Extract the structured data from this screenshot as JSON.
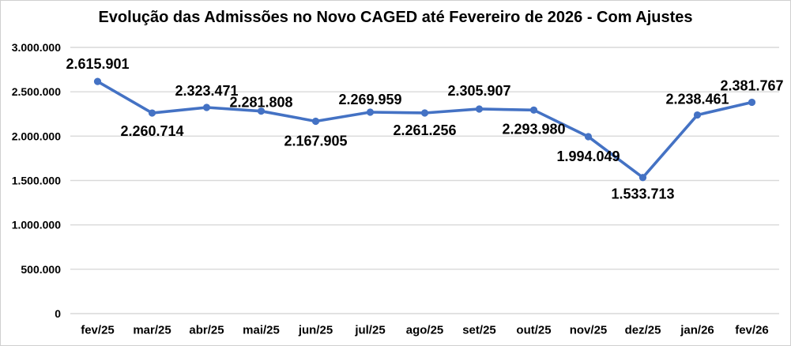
{
  "chart_data": {
    "type": "line",
    "title": "Evolução das Admissões no Novo CAGED até Fevereiro de 2026 - Com Ajustes",
    "categories": [
      "fev/25",
      "mar/25",
      "abr/25",
      "mai/25",
      "jun/25",
      "jul/25",
      "ago/25",
      "set/25",
      "out/25",
      "nov/25",
      "dez/25",
      "jan/26",
      "fev/26"
    ],
    "values": [
      2615901,
      2260714,
      2323471,
      2281808,
      2167905,
      2269959,
      2261256,
      2305907,
      2293980,
      1994049,
      1533713,
      2238461,
      2381767
    ],
    "data_labels": [
      "2.615.901",
      "2.260.714",
      "2.323.471",
      "2.281.808",
      "2.167.905",
      "2.269.959",
      "2.261.256",
      "2.305.907",
      "2.293.980",
      "1.994.049",
      "1.533.713",
      "2.238.461",
      "2.381.767"
    ],
    "label_positions": [
      "above",
      "below",
      "above",
      "above",
      "below",
      "above",
      "below",
      "above",
      "below",
      "below",
      "below",
      "above",
      "above"
    ],
    "label_dy": [
      -22,
      23,
      -21,
      -11,
      25,
      -16,
      22,
      -23,
      24,
      25,
      21,
      -20,
      -21
    ],
    "xlabel": "",
    "ylabel": "",
    "ylim": [
      0,
      3000000
    ],
    "yticks": [
      {
        "value": 0,
        "label": "0"
      },
      {
        "value": 500000,
        "label": "500.000"
      },
      {
        "value": 1000000,
        "label": "1.000.000"
      },
      {
        "value": 1500000,
        "label": "1.500.000"
      },
      {
        "value": 2000000,
        "label": "2.000.000"
      },
      {
        "value": 2500000,
        "label": "2.500.000"
      },
      {
        "value": 3000000,
        "label": "3.000.000"
      }
    ],
    "grid": true,
    "legend": "none",
    "line_color": "#4472C4",
    "marker_color": "#4472C4",
    "gridline_color": "#D9D9D9",
    "axis_line_color": "#D9D9D9",
    "text_color": "#000000"
  }
}
